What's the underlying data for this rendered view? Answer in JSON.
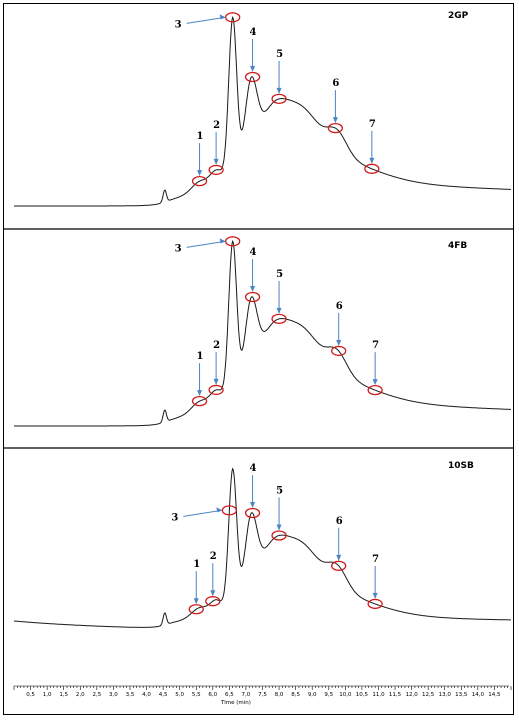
{
  "chart_data": {
    "type": "line",
    "xlabel": "Time (min)",
    "xlim": [
      0,
      15
    ],
    "x_ticks": [
      "0,5",
      "1,0",
      "1,5",
      "2,0",
      "2,5",
      "3,0",
      "3,5",
      "4,0",
      "4,5",
      "5,0",
      "5,5",
      "6,0",
      "6,5",
      "7,0",
      "7,5",
      "8,0",
      "8,5",
      "9,0",
      "9,5",
      "10,0",
      "10,5",
      "11,0",
      "11,5",
      "12,0",
      "12,5",
      "13,0",
      "13,5",
      "14,0",
      "14,5"
    ],
    "panels": [
      {
        "name": "2GP",
        "peak_labels": [
          "1",
          "2",
          "3",
          "4",
          "5",
          "6",
          "7"
        ],
        "peaks_x": [
          5.6,
          6.1,
          6.6,
          7.2,
          8.0,
          9.7,
          10.8
        ]
      },
      {
        "name": "4FB",
        "peak_labels": [
          "1",
          "2",
          "3",
          "4",
          "5",
          "6",
          "7"
        ],
        "peaks_x": [
          5.6,
          6.1,
          6.6,
          7.2,
          8.0,
          9.8,
          10.9
        ]
      },
      {
        "name": "10SB",
        "peak_labels": [
          "1",
          "2",
          "3",
          "4",
          "5",
          "6",
          "7"
        ],
        "peaks_x": [
          5.5,
          6.0,
          6.5,
          7.2,
          8.0,
          9.8,
          10.9
        ]
      }
    ]
  }
}
